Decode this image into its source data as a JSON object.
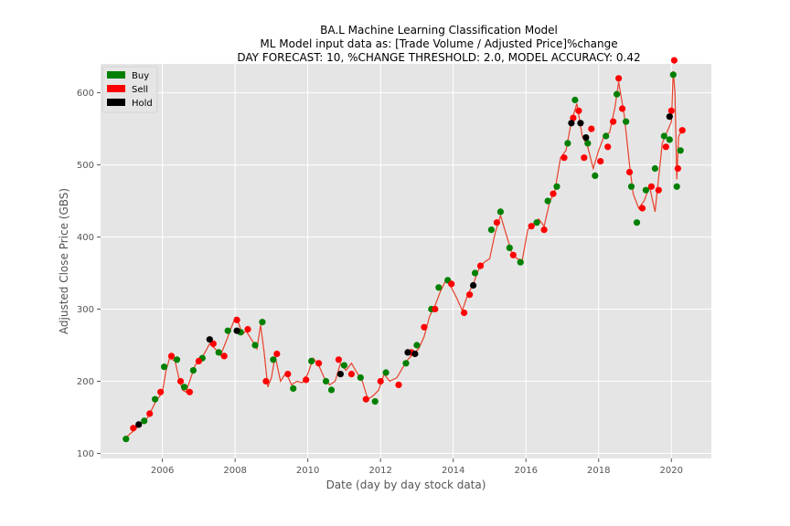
{
  "chart_data": {
    "type": "line",
    "title_lines": [
      "BA.L Machine Learning Classification Model",
      "ML Model input data as: [Trade Volume / Adjusted Price]%change",
      "DAY FORECAST: 10,   %CHANGE THRESHOLD: 2.0,   MODEL ACCURACY: 0.42"
    ],
    "xlabel": "Date (day by day stock data)",
    "ylabel": "Adjusted Close Price (GBS)",
    "xlim": [
      2004.3,
      2021.1
    ],
    "ylim": [
      93,
      640
    ],
    "x_ticks": [
      2006,
      2008,
      2010,
      2012,
      2014,
      2016,
      2018,
      2020
    ],
    "y_ticks": [
      100,
      200,
      300,
      400,
      500,
      600
    ],
    "grid": true,
    "legend_position": "top-left",
    "legend": [
      {
        "label": "Buy",
        "color": "#008000"
      },
      {
        "label": "Sell",
        "color": "#ff0000"
      },
      {
        "label": "Hold",
        "color": "#000000"
      }
    ],
    "line_color": "#e8402a",
    "price_series": [
      [
        2005.0,
        122
      ],
      [
        2005.2,
        131
      ],
      [
        2005.4,
        140
      ],
      [
        2005.6,
        150
      ],
      [
        2005.8,
        170
      ],
      [
        2006.0,
        185
      ],
      [
        2006.1,
        215
      ],
      [
        2006.2,
        232
      ],
      [
        2006.35,
        228
      ],
      [
        2006.45,
        205
      ],
      [
        2006.55,
        188
      ],
      [
        2006.65,
        185
      ],
      [
        2006.75,
        200
      ],
      [
        2006.9,
        222
      ],
      [
        2007.0,
        228
      ],
      [
        2007.15,
        238
      ],
      [
        2007.3,
        252
      ],
      [
        2007.45,
        245
      ],
      [
        2007.6,
        236
      ],
      [
        2007.75,
        255
      ],
      [
        2007.9,
        275
      ],
      [
        2008.0,
        288
      ],
      [
        2008.1,
        280
      ],
      [
        2008.2,
        265
      ],
      [
        2008.3,
        270
      ],
      [
        2008.45,
        258
      ],
      [
        2008.6,
        245
      ],
      [
        2008.7,
        278
      ],
      [
        2008.8,
        240
      ],
      [
        2008.9,
        192
      ],
      [
        2009.0,
        205
      ],
      [
        2009.1,
        235
      ],
      [
        2009.25,
        200
      ],
      [
        2009.4,
        212
      ],
      [
        2009.55,
        195
      ],
      [
        2009.7,
        200
      ],
      [
        2009.85,
        198
      ],
      [
        2010.0,
        210
      ],
      [
        2010.15,
        232
      ],
      [
        2010.3,
        222
      ],
      [
        2010.45,
        205
      ],
      [
        2010.6,
        195
      ],
      [
        2010.75,
        200
      ],
      [
        2010.9,
        225
      ],
      [
        2011.05,
        215
      ],
      [
        2011.2,
        225
      ],
      [
        2011.35,
        212
      ],
      [
        2011.5,
        200
      ],
      [
        2011.65,
        175
      ],
      [
        2011.8,
        180
      ],
      [
        2011.95,
        188
      ],
      [
        2012.1,
        210
      ],
      [
        2012.25,
        200
      ],
      [
        2012.45,
        205
      ],
      [
        2012.6,
        218
      ],
      [
        2012.75,
        230
      ],
      [
        2012.9,
        238
      ],
      [
        2013.05,
        245
      ],
      [
        2013.2,
        262
      ],
      [
        2013.35,
        290
      ],
      [
        2013.5,
        305
      ],
      [
        2013.65,
        325
      ],
      [
        2013.8,
        340
      ],
      [
        2013.95,
        330
      ],
      [
        2014.1,
        315
      ],
      [
        2014.25,
        298
      ],
      [
        2014.4,
        320
      ],
      [
        2014.55,
        335
      ],
      [
        2014.7,
        355
      ],
      [
        2014.85,
        365
      ],
      [
        2015.0,
        370
      ],
      [
        2015.15,
        405
      ],
      [
        2015.3,
        430
      ],
      [
        2015.45,
        405
      ],
      [
        2015.6,
        380
      ],
      [
        2015.75,
        370
      ],
      [
        2015.9,
        368
      ],
      [
        2016.05,
        410
      ],
      [
        2016.2,
        418
      ],
      [
        2016.35,
        425
      ],
      [
        2016.5,
        415
      ],
      [
        2016.65,
        448
      ],
      [
        2016.8,
        465
      ],
      [
        2016.95,
        510
      ],
      [
        2017.1,
        520
      ],
      [
        2017.25,
        560
      ],
      [
        2017.4,
        585
      ],
      [
        2017.55,
        540
      ],
      [
        2017.7,
        525
      ],
      [
        2017.85,
        495
      ],
      [
        2018.0,
        520
      ],
      [
        2018.15,
        540
      ],
      [
        2018.3,
        545
      ],
      [
        2018.45,
        580
      ],
      [
        2018.55,
        615
      ],
      [
        2018.7,
        570
      ],
      [
        2018.85,
        500
      ],
      [
        2018.95,
        460
      ],
      [
        2019.1,
        440
      ],
      [
        2019.25,
        450
      ],
      [
        2019.4,
        470
      ],
      [
        2019.55,
        435
      ],
      [
        2019.75,
        530
      ],
      [
        2019.9,
        548
      ],
      [
        2020.0,
        560
      ],
      [
        2020.05,
        630
      ],
      [
        2020.1,
        600
      ],
      [
        2020.15,
        480
      ],
      [
        2020.2,
        540
      ],
      [
        2020.3,
        548
      ]
    ],
    "buy_points": [
      [
        2005.0,
        120
      ],
      [
        2005.5,
        145
      ],
      [
        2005.8,
        175
      ],
      [
        2006.05,
        220
      ],
      [
        2006.4,
        230
      ],
      [
        2006.6,
        192
      ],
      [
        2006.85,
        215
      ],
      [
        2007.1,
        232
      ],
      [
        2007.55,
        240
      ],
      [
        2007.8,
        270
      ],
      [
        2008.15,
        268
      ],
      [
        2008.55,
        250
      ],
      [
        2008.75,
        282
      ],
      [
        2009.05,
        230
      ],
      [
        2009.6,
        190
      ],
      [
        2010.1,
        228
      ],
      [
        2010.5,
        200
      ],
      [
        2010.65,
        188
      ],
      [
        2011.0,
        222
      ],
      [
        2011.45,
        205
      ],
      [
        2011.85,
        172
      ],
      [
        2012.15,
        212
      ],
      [
        2012.7,
        225
      ],
      [
        2013.0,
        250
      ],
      [
        2013.4,
        300
      ],
      [
        2013.6,
        330
      ],
      [
        2013.85,
        340
      ],
      [
        2014.6,
        350
      ],
      [
        2015.05,
        410
      ],
      [
        2015.3,
        435
      ],
      [
        2015.55,
        385
      ],
      [
        2015.85,
        365
      ],
      [
        2016.3,
        420
      ],
      [
        2016.6,
        450
      ],
      [
        2016.85,
        470
      ],
      [
        2017.15,
        530
      ],
      [
        2017.35,
        590
      ],
      [
        2017.7,
        530
      ],
      [
        2017.9,
        485
      ],
      [
        2018.2,
        540
      ],
      [
        2018.5,
        598
      ],
      [
        2018.75,
        560
      ],
      [
        2018.9,
        470
      ],
      [
        2019.05,
        420
      ],
      [
        2019.3,
        465
      ],
      [
        2019.55,
        495
      ],
      [
        2019.8,
        540
      ],
      [
        2019.95,
        535
      ],
      [
        2020.05,
        625
      ],
      [
        2020.15,
        470
      ],
      [
        2020.25,
        520
      ]
    ],
    "sell_points": [
      [
        2005.2,
        135
      ],
      [
        2005.65,
        155
      ],
      [
        2005.95,
        185
      ],
      [
        2006.25,
        235
      ],
      [
        2006.5,
        200
      ],
      [
        2006.75,
        185
      ],
      [
        2007.0,
        228
      ],
      [
        2007.4,
        252
      ],
      [
        2007.7,
        235
      ],
      [
        2008.05,
        285
      ],
      [
        2008.35,
        272
      ],
      [
        2008.85,
        200
      ],
      [
        2009.15,
        238
      ],
      [
        2009.45,
        210
      ],
      [
        2009.95,
        202
      ],
      [
        2010.3,
        225
      ],
      [
        2010.85,
        230
      ],
      [
        2011.2,
        210
      ],
      [
        2011.6,
        175
      ],
      [
        2012.0,
        200
      ],
      [
        2012.5,
        195
      ],
      [
        2012.85,
        240
      ],
      [
        2013.2,
        275
      ],
      [
        2013.5,
        300
      ],
      [
        2013.95,
        335
      ],
      [
        2014.3,
        295
      ],
      [
        2014.45,
        320
      ],
      [
        2014.75,
        360
      ],
      [
        2015.2,
        420
      ],
      [
        2015.65,
        375
      ],
      [
        2016.15,
        415
      ],
      [
        2016.5,
        410
      ],
      [
        2016.75,
        460
      ],
      [
        2017.05,
        510
      ],
      [
        2017.3,
        565
      ],
      [
        2017.45,
        575
      ],
      [
        2017.6,
        510
      ],
      [
        2017.8,
        550
      ],
      [
        2018.05,
        505
      ],
      [
        2018.25,
        525
      ],
      [
        2018.4,
        560
      ],
      [
        2018.55,
        620
      ],
      [
        2018.65,
        578
      ],
      [
        2018.85,
        490
      ],
      [
        2019.2,
        440
      ],
      [
        2019.45,
        470
      ],
      [
        2019.65,
        465
      ],
      [
        2019.85,
        525
      ],
      [
        2020.0,
        575
      ],
      [
        2020.08,
        645
      ],
      [
        2020.18,
        495
      ],
      [
        2020.3,
        548
      ]
    ],
    "hold_points": [
      [
        2005.35,
        140
      ],
      [
        2007.3,
        258
      ],
      [
        2008.05,
        270
      ],
      [
        2010.9,
        210
      ],
      [
        2012.75,
        240
      ],
      [
        2012.95,
        238
      ],
      [
        2014.55,
        333
      ],
      [
        2017.25,
        558
      ],
      [
        2017.5,
        558
      ],
      [
        2017.65,
        538
      ],
      [
        2019.95,
        567
      ]
    ]
  }
}
